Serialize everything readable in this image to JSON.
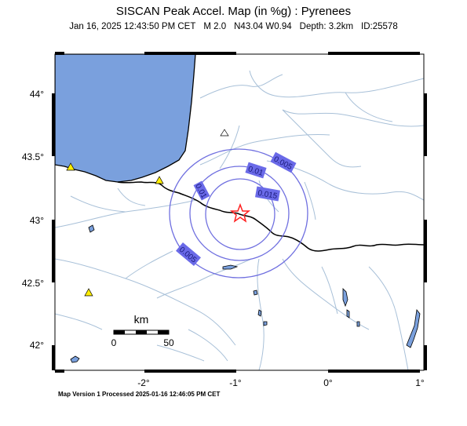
{
  "title": "SISCAN Peak Accel. Map (in %g) : Pyrenees",
  "subtitle": {
    "datetime": "Jan 16, 2025 12:43:50 PM CET",
    "magnitude": "M 2.0",
    "location": "N43.04 W0.94",
    "depth": "Depth: 3.2km",
    "event_id": "ID:25578"
  },
  "footer": "Map Version 1 Processed 2025-01-16 12:46:05 PM CET",
  "axes": {
    "lat_ticks": [
      "44°",
      "43.5°",
      "43°",
      "42.5°",
      "42°"
    ],
    "lon_ticks": [
      "-2°",
      "-1°",
      "0°",
      "1°"
    ]
  },
  "contours": [
    {
      "label": "0.005"
    },
    {
      "label": "0.01"
    },
    {
      "label": "0.015"
    },
    {
      "label": "0.01"
    },
    {
      "label": "0.005"
    }
  ],
  "scale_bar": {
    "unit": "km",
    "start": "0",
    "end": "50"
  },
  "colors": {
    "sea": "#7aa0dd",
    "river": "#a8c0d8",
    "border": "#000000",
    "contour": "#7070e0",
    "contour_label_bg": "#6a6ae8",
    "epicenter": "#ff2020",
    "station": "#ffee00"
  },
  "epicenter_icon": "star-icon",
  "station_icon": "triangle-icon"
}
